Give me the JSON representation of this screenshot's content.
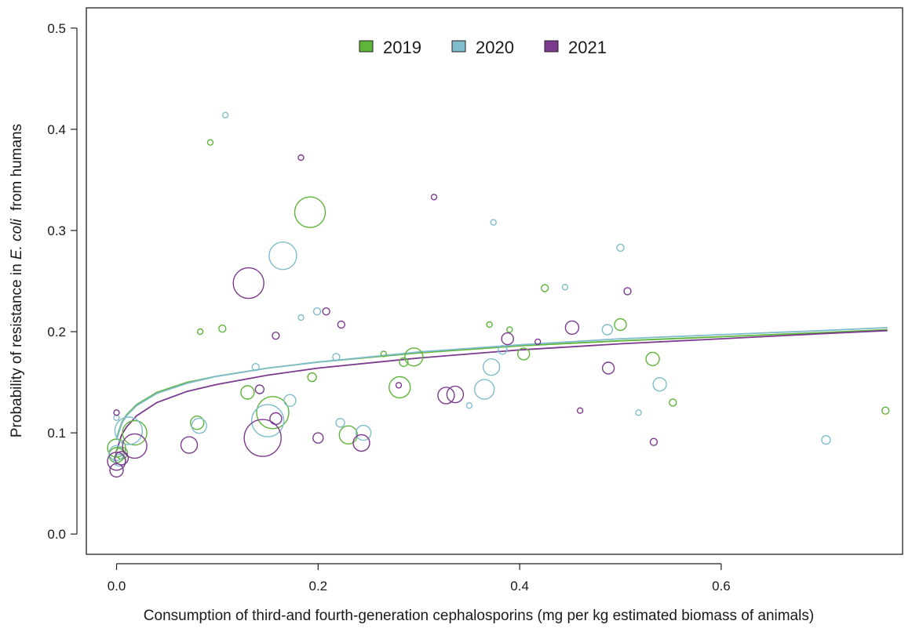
{
  "chart_data": {
    "type": "scatter",
    "title": "",
    "xlabel": "Consumption of third-and fourth-generation cephalosporins  (mg per kg estimated biomass of animals)",
    "ylabel": {
      "prefix": "Probability of resistance in ",
      "italic": "E. coli",
      "suffix": "  from humans"
    },
    "xlim": [
      -0.03,
      0.78
    ],
    "ylim": [
      -0.02,
      0.52
    ],
    "xticks": [
      0.0,
      0.2,
      0.4,
      0.6
    ],
    "xtick_labels": [
      "0.0",
      "0.2",
      "0.4",
      "0.6"
    ],
    "yticks": [
      0.0,
      0.1,
      0.2,
      0.3,
      0.4,
      0.5
    ],
    "ytick_labels": [
      "0.0",
      "0.1",
      "0.2",
      "0.3",
      "0.4",
      "0.5"
    ],
    "grid": false,
    "legend_position": "top-center",
    "marker_size_meaning": "relative sample size",
    "series": [
      {
        "name": "2019",
        "color": "#5fb43a",
        "points": [
          {
            "x": 0.0,
            "y": 0.085,
            "size": 10
          },
          {
            "x": 0.0,
            "y": 0.078,
            "size": 8
          },
          {
            "x": 0.005,
            "y": 0.08,
            "size": 6
          },
          {
            "x": 0.018,
            "y": 0.1,
            "size": 14
          },
          {
            "x": 0.08,
            "y": 0.11,
            "size": 7
          },
          {
            "x": 0.083,
            "y": 0.2,
            "size": 2
          },
          {
            "x": 0.093,
            "y": 0.387,
            "size": 2
          },
          {
            "x": 0.105,
            "y": 0.203,
            "size": 3
          },
          {
            "x": 0.13,
            "y": 0.14,
            "size": 7
          },
          {
            "x": 0.155,
            "y": 0.12,
            "size": 19
          },
          {
            "x": 0.192,
            "y": 0.318,
            "size": 18
          },
          {
            "x": 0.194,
            "y": 0.155,
            "size": 4
          },
          {
            "x": 0.23,
            "y": 0.098,
            "size": 10
          },
          {
            "x": 0.265,
            "y": 0.178,
            "size": 2
          },
          {
            "x": 0.281,
            "y": 0.145,
            "size": 12
          },
          {
            "x": 0.285,
            "y": 0.17,
            "size": 4
          },
          {
            "x": 0.295,
            "y": 0.175,
            "size": 10
          },
          {
            "x": 0.37,
            "y": 0.207,
            "size": 2
          },
          {
            "x": 0.39,
            "y": 0.202,
            "size": 2
          },
          {
            "x": 0.404,
            "y": 0.178,
            "size": 6
          },
          {
            "x": 0.425,
            "y": 0.243,
            "size": 3
          },
          {
            "x": 0.5,
            "y": 0.207,
            "size": 6
          },
          {
            "x": 0.532,
            "y": 0.173,
            "size": 7
          },
          {
            "x": 0.552,
            "y": 0.13,
            "size": 3
          },
          {
            "x": 0.763,
            "y": 0.122,
            "size": 3
          }
        ]
      },
      {
        "name": "2020",
        "color": "#7fbccc",
        "points": [
          {
            "x": 0.0,
            "y": 0.115,
            "size": 2
          },
          {
            "x": 0.0,
            "y": 0.08,
            "size": 8
          },
          {
            "x": 0.003,
            "y": 0.073,
            "size": 6
          },
          {
            "x": 0.012,
            "y": 0.102,
            "size": 16
          },
          {
            "x": 0.082,
            "y": 0.107,
            "size": 8
          },
          {
            "x": 0.108,
            "y": 0.414,
            "size": 2
          },
          {
            "x": 0.138,
            "y": 0.165,
            "size": 3
          },
          {
            "x": 0.15,
            "y": 0.112,
            "size": 19
          },
          {
            "x": 0.165,
            "y": 0.275,
            "size": 16
          },
          {
            "x": 0.172,
            "y": 0.132,
            "size": 6
          },
          {
            "x": 0.183,
            "y": 0.214,
            "size": 2
          },
          {
            "x": 0.199,
            "y": 0.22,
            "size": 3
          },
          {
            "x": 0.218,
            "y": 0.175,
            "size": 3
          },
          {
            "x": 0.222,
            "y": 0.11,
            "size": 4
          },
          {
            "x": 0.245,
            "y": 0.1,
            "size": 8
          },
          {
            "x": 0.35,
            "y": 0.127,
            "size": 2
          },
          {
            "x": 0.365,
            "y": 0.143,
            "size": 11
          },
          {
            "x": 0.372,
            "y": 0.165,
            "size": 9
          },
          {
            "x": 0.374,
            "y": 0.308,
            "size": 2
          },
          {
            "x": 0.383,
            "y": 0.182,
            "size": 4
          },
          {
            "x": 0.445,
            "y": 0.244,
            "size": 2
          },
          {
            "x": 0.487,
            "y": 0.202,
            "size": 5
          },
          {
            "x": 0.5,
            "y": 0.283,
            "size": 3
          },
          {
            "x": 0.518,
            "y": 0.12,
            "size": 2
          },
          {
            "x": 0.539,
            "y": 0.148,
            "size": 7
          },
          {
            "x": 0.704,
            "y": 0.093,
            "size": 4
          }
        ]
      },
      {
        "name": "2021",
        "color": "#7b3a8e",
        "points": [
          {
            "x": 0.0,
            "y": 0.12,
            "size": 2
          },
          {
            "x": 0.0,
            "y": 0.063,
            "size": 7
          },
          {
            "x": 0.0,
            "y": 0.072,
            "size": 10
          },
          {
            "x": 0.005,
            "y": 0.075,
            "size": 7
          },
          {
            "x": 0.018,
            "y": 0.087,
            "size": 14
          },
          {
            "x": 0.072,
            "y": 0.088,
            "size": 9
          },
          {
            "x": 0.131,
            "y": 0.248,
            "size": 18
          },
          {
            "x": 0.145,
            "y": 0.095,
            "size": 22
          },
          {
            "x": 0.142,
            "y": 0.143,
            "size": 4
          },
          {
            "x": 0.158,
            "y": 0.196,
            "size": 3
          },
          {
            "x": 0.158,
            "y": 0.114,
            "size": 6
          },
          {
            "x": 0.183,
            "y": 0.372,
            "size": 2
          },
          {
            "x": 0.2,
            "y": 0.095,
            "size": 5
          },
          {
            "x": 0.208,
            "y": 0.22,
            "size": 3
          },
          {
            "x": 0.223,
            "y": 0.207,
            "size": 3
          },
          {
            "x": 0.243,
            "y": 0.09,
            "size": 9
          },
          {
            "x": 0.28,
            "y": 0.147,
            "size": 2
          },
          {
            "x": 0.315,
            "y": 0.333,
            "size": 2
          },
          {
            "x": 0.327,
            "y": 0.137,
            "size": 9
          },
          {
            "x": 0.336,
            "y": 0.138,
            "size": 9
          },
          {
            "x": 0.388,
            "y": 0.193,
            "size": 6
          },
          {
            "x": 0.418,
            "y": 0.19,
            "size": 2
          },
          {
            "x": 0.452,
            "y": 0.204,
            "size": 7
          },
          {
            "x": 0.46,
            "y": 0.122,
            "size": 2
          },
          {
            "x": 0.488,
            "y": 0.164,
            "size": 6
          },
          {
            "x": 0.507,
            "y": 0.24,
            "size": 3
          },
          {
            "x": 0.533,
            "y": 0.091,
            "size": 3
          }
        ]
      }
    ],
    "fit_lines": [
      {
        "name": "2019",
        "color": "#5fb43a",
        "x": [
          0.0,
          0.005,
          0.01,
          0.02,
          0.04,
          0.07,
          0.1,
          0.15,
          0.2,
          0.3,
          0.4,
          0.5,
          0.6,
          0.7,
          0.765
        ],
        "y": [
          0.095,
          0.11,
          0.118,
          0.128,
          0.14,
          0.15,
          0.156,
          0.164,
          0.17,
          0.179,
          0.186,
          0.191,
          0.195,
          0.199,
          0.202
        ]
      },
      {
        "name": "2020",
        "color": "#7fbccc",
        "x": [
          0.0,
          0.005,
          0.01,
          0.02,
          0.04,
          0.07,
          0.1,
          0.15,
          0.2,
          0.3,
          0.4,
          0.5,
          0.6,
          0.7,
          0.765
        ],
        "y": [
          0.093,
          0.109,
          0.117,
          0.127,
          0.139,
          0.149,
          0.156,
          0.164,
          0.17,
          0.18,
          0.187,
          0.193,
          0.197,
          0.201,
          0.204
        ]
      },
      {
        "name": "2021",
        "color": "#7b3a8e",
        "x": [
          0.0,
          0.005,
          0.01,
          0.02,
          0.04,
          0.07,
          0.1,
          0.15,
          0.2,
          0.3,
          0.4,
          0.5,
          0.6,
          0.7,
          0.765
        ],
        "y": [
          0.082,
          0.098,
          0.106,
          0.117,
          0.13,
          0.141,
          0.148,
          0.157,
          0.164,
          0.174,
          0.182,
          0.188,
          0.193,
          0.198,
          0.201
        ]
      }
    ]
  }
}
